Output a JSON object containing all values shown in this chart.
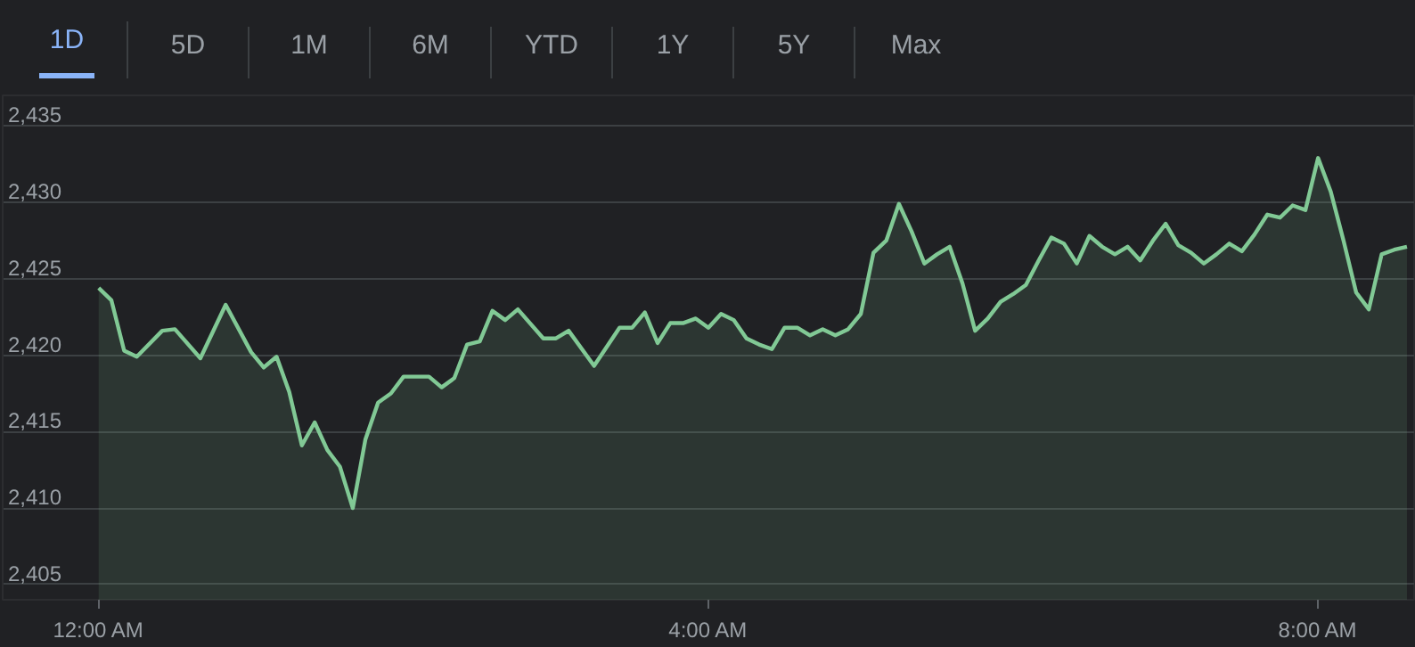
{
  "chart_data": {
    "type": "area",
    "annotations": [
      "1D",
      "5D",
      "1M",
      "6M",
      "YTD",
      "1Y",
      "5Y",
      "Max"
    ],
    "x": [
      0,
      0.083,
      0.167,
      0.25,
      0.417,
      0.5,
      0.667,
      0.833,
      1,
      1.083,
      1.167,
      1.25,
      1.333,
      1.417,
      1.5,
      1.583,
      1.667,
      1.75,
      1.833,
      1.917,
      2,
      2.167,
      2.25,
      2.333,
      2.417,
      2.5,
      2.583,
      2.667,
      2.75,
      2.917,
      3,
      3.083,
      3.25,
      3.417,
      3.5,
      3.583,
      3.667,
      3.75,
      3.833,
      3.917,
      4,
      4.083,
      4.167,
      4.25,
      4.333,
      4.417,
      4.5,
      4.583,
      4.667,
      4.75,
      4.833,
      4.917,
      5,
      5.083,
      5.167,
      5.25,
      5.333,
      5.417,
      5.5,
      5.583,
      5.667,
      5.75,
      5.833,
      5.917,
      6,
      6.083,
      6.167,
      6.25,
      6.333,
      6.417,
      6.5,
      6.583,
      6.667,
      6.75,
      6.833,
      6.917,
      7,
      7.083,
      7.167,
      7.25,
      7.333,
      7.417,
      7.5,
      7.583,
      7.667,
      7.75,
      7.833,
      7.917,
      8,
      8.083,
      8.167,
      8.25,
      8.333,
      8.417,
      8.5,
      8.583
    ],
    "series": [
      {
        "color": "#81c995",
        "values": [
          2424.4,
          2423.6,
          2420.3,
          2419.9,
          2421.6,
          2421.7,
          2419.8,
          2423.3,
          2420.2,
          2419.2,
          2419.9,
          2417.6,
          2414.1,
          2415.6,
          2413.8,
          2412.7,
          2410.0,
          2414.5,
          2416.9,
          2417.5,
          2418.6,
          2418.6,
          2417.9,
          2418.5,
          2420.7,
          2420.9,
          2422.9,
          2422.3,
          2423.0,
          2421.1,
          2421.1,
          2421.6,
          2419.3,
          2421.8,
          2421.8,
          2422.8,
          2420.8,
          2422.1,
          2422.1,
          2422.4,
          2421.8,
          2422.7,
          2422.3,
          2421.1,
          2420.7,
          2420.4,
          2421.8,
          2421.8,
          2421.3,
          2421.7,
          2421.3,
          2421.7,
          2422.7,
          2426.7,
          2427.5,
          2429.9,
          2428.1,
          2426.0,
          2426.6,
          2427.1,
          2424.7,
          2421.6,
          2422.4,
          2423.5,
          2424.0,
          2424.6,
          2426.2,
          2427.7,
          2427.3,
          2426.0,
          2427.8,
          2427.1,
          2426.6,
          2427.1,
          2426.2,
          2427.5,
          2428.6,
          2427.2,
          2426.7,
          2426.0,
          2426.6,
          2427.3,
          2426.8,
          2427.9,
          2429.2,
          2429.0,
          2429.8,
          2429.5,
          2432.9,
          2430.7,
          2427.5,
          2424.1,
          2423.0,
          2426.6,
          2426.9,
          2427.1
        ]
      }
    ],
    "xlim": [
      -0.63,
      8.63
    ],
    "xticks": [
      {
        "value": 0,
        "label": "12:00 AM"
      },
      {
        "value": 4,
        "label": "4:00 AM"
      },
      {
        "value": 8,
        "label": "8:00 AM"
      }
    ],
    "ylim": [
      2404,
      2437
    ],
    "yticks": [
      {
        "value": 2405,
        "label": "2,405"
      },
      {
        "value": 2410,
        "label": "2,410"
      },
      {
        "value": 2415,
        "label": "2,415"
      },
      {
        "value": 2420,
        "label": "2,420"
      },
      {
        "value": 2425,
        "label": "2,425"
      },
      {
        "value": 2430,
        "label": "2,430"
      },
      {
        "value": 2435,
        "label": "2,435"
      }
    ],
    "grid": "y",
    "line_style": "solid"
  }
}
